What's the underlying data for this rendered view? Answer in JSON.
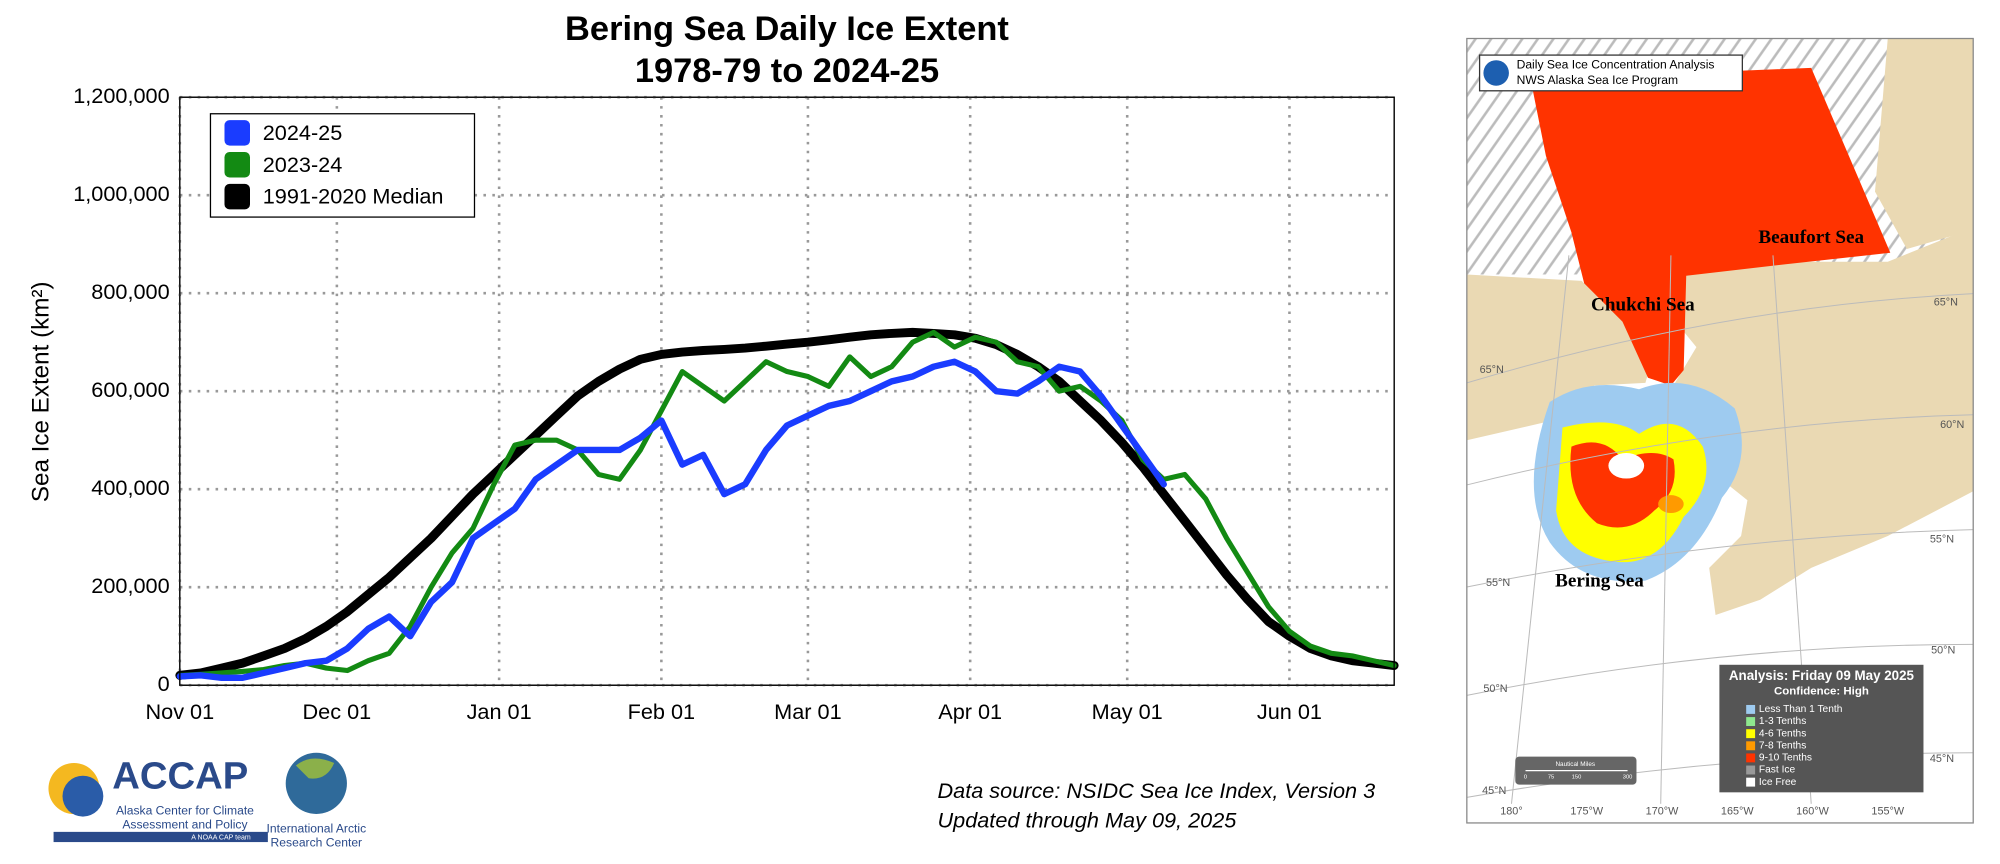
{
  "chart_data": {
    "type": "line",
    "title": "Bering Sea Daily Ice Extent",
    "subtitle": "1978-79 to 2024-25",
    "y_label": "Sea Ice Extent (km²)",
    "x": [
      0,
      4,
      8,
      12,
      16,
      20,
      24,
      28,
      32,
      36,
      40,
      44,
      48,
      52,
      56,
      60,
      64,
      68,
      72,
      76,
      80,
      84,
      88,
      92,
      96,
      100,
      104,
      108,
      112,
      116,
      120,
      124,
      128,
      132,
      136,
      140,
      144,
      148,
      152,
      156,
      160,
      164,
      168,
      172,
      176,
      180,
      184,
      188,
      192,
      196,
      200,
      204,
      208,
      212,
      216,
      220,
      224,
      228,
      232
    ],
    "xlim": [
      0,
      232
    ],
    "xticks": [
      {
        "value": 0,
        "label": "Nov 01"
      },
      {
        "value": 30,
        "label": "Dec 01"
      },
      {
        "value": 61,
        "label": "Jan 01"
      },
      {
        "value": 92,
        "label": "Feb 01"
      },
      {
        "value": 120,
        "label": "Mar 01"
      },
      {
        "value": 151,
        "label": "Apr 01"
      },
      {
        "value": 181,
        "label": "May 01"
      },
      {
        "value": 212,
        "label": "Jun 01"
      }
    ],
    "ylim": [
      0,
      1200000
    ],
    "yticks": [
      0,
      {
        "value": 200000,
        "label": "200,000"
      },
      {
        "value": 400000,
        "label": "400,000"
      },
      {
        "value": 600000,
        "label": "600,000"
      },
      {
        "value": 800000,
        "label": "800,000"
      },
      {
        "value": 1000000,
        "label": "1,000,000"
      },
      {
        "value": 1200000,
        "label": "1,200,000"
      }
    ],
    "grid": true,
    "legend_position": "upper left",
    "series": [
      {
        "name": "2024-25",
        "color": "#1a3cff",
        "width": 5,
        "values": [
          18000,
          20000,
          15000,
          15000,
          25000,
          35000,
          45000,
          50000,
          75000,
          115000,
          140000,
          100000,
          170000,
          210000,
          300000,
          330000,
          360000,
          420000,
          450000,
          480000,
          480000,
          480000,
          505000,
          540000,
          450000,
          470000,
          390000,
          410000,
          480000,
          530000,
          550000,
          570000,
          580000,
          600000,
          620000,
          630000,
          650000,
          660000,
          640000,
          600000,
          595000,
          620000,
          650000,
          640000,
          590000,
          530000,
          470000,
          410000,
          null,
          null,
          null,
          null,
          null,
          null,
          null,
          null,
          null,
          null,
          null
        ]
      },
      {
        "name": "2023-24",
        "color": "#138a13",
        "width": 4,
        "values": [
          20000,
          22000,
          25000,
          28000,
          32000,
          40000,
          45000,
          35000,
          30000,
          50000,
          65000,
          120000,
          200000,
          270000,
          320000,
          410000,
          490000,
          500000,
          500000,
          480000,
          430000,
          420000,
          480000,
          560000,
          640000,
          610000,
          580000,
          620000,
          660000,
          640000,
          630000,
          610000,
          670000,
          630000,
          650000,
          700000,
          720000,
          690000,
          710000,
          700000,
          660000,
          650000,
          600000,
          610000,
          580000,
          540000,
          460000,
          420000,
          430000,
          380000,
          300000,
          230000,
          160000,
          110000,
          80000,
          65000,
          60000,
          50000,
          40000
        ]
      },
      {
        "name": "1991-2020 Median",
        "color": "#000000",
        "width": 7,
        "values": [
          20000,
          25000,
          35000,
          45000,
          60000,
          75000,
          95000,
          120000,
          150000,
          185000,
          220000,
          260000,
          300000,
          345000,
          390000,
          430000,
          470000,
          510000,
          550000,
          590000,
          620000,
          645000,
          665000,
          675000,
          680000,
          683000,
          685000,
          688000,
          692000,
          696000,
          700000,
          705000,
          710000,
          715000,
          718000,
          720000,
          718000,
          715000,
          708000,
          695000,
          675000,
          650000,
          620000,
          580000,
          540000,
          495000,
          445000,
          390000,
          335000,
          280000,
          225000,
          175000,
          130000,
          100000,
          75000,
          60000,
          50000,
          45000,
          40000
        ]
      }
    ]
  },
  "footer": {
    "source": "Data source: NSIDC Sea Ice Index, Version 3",
    "updated": "Updated through May 09, 2025",
    "accap": "ACCAP",
    "accap_line1": "Alaska Center for Climate",
    "accap_line2": "Assessment and Policy",
    "accap_line3": "A NOAA CAP team",
    "iarc_line1": "International Arctic",
    "iarc_line2": "Research Center"
  },
  "map": {
    "header_line1": "Daily Sea Ice Concentration Analysis",
    "header_line2": "NWS Alaska Sea Ice Program",
    "seas": [
      "Beaufort Sea",
      "Chukchi Sea",
      "Bering Sea"
    ],
    "lat_labels": [
      "65°N",
      "55°N",
      "50°N",
      "45°N",
      "65°N",
      "60°N",
      "55°N",
      "50°N",
      "45°N"
    ],
    "lon_labels": [
      "180°",
      "175°W",
      "170°W",
      "165°W",
      "160°W",
      "155°W"
    ],
    "analysis": "Analysis: Friday 09 May 2025",
    "confidence": "Confidence: High",
    "legend": [
      {
        "label": "Less Than 1 Tenth",
        "color": "#9ecbf0"
      },
      {
        "label": "1-3 Tenths",
        "color": "#8ee88e"
      },
      {
        "label": "4-6 Tenths",
        "color": "#ffff00"
      },
      {
        "label": "7-8 Tenths",
        "color": "#ff9a00"
      },
      {
        "label": "9-10 Tenths",
        "color": "#ff3300"
      },
      {
        "label": "Fast Ice",
        "color": "#999999"
      },
      {
        "label": "Ice Free",
        "color": "#ffffff"
      }
    ],
    "scale_title": "Nautical Miles",
    "scale_labels": [
      "0",
      "75",
      "150",
      "300"
    ]
  }
}
